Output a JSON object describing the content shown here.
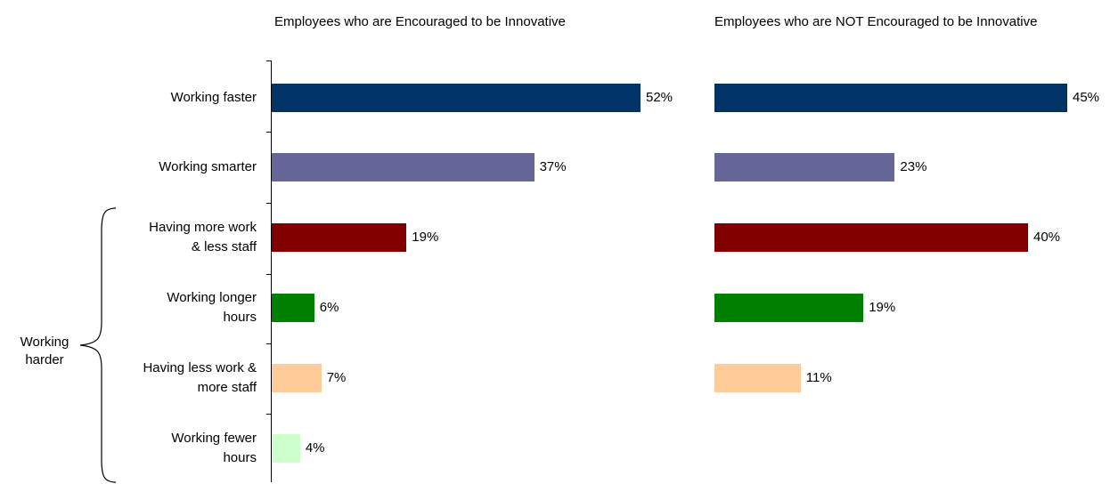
{
  "chart_data": [
    {
      "type": "bar",
      "orientation": "horizontal",
      "title": "Employees who are Encouraged to be Innovative",
      "categories": [
        "Working faster",
        "Working smarter",
        "Having more work & less staff",
        "Working longer hours",
        "Having less work & more staff",
        "Working fewer hours"
      ],
      "values": [
        52,
        37,
        19,
        6,
        7,
        4
      ],
      "value_labels": [
        "52%",
        "37%",
        "19%",
        "6%",
        "7%",
        "4%"
      ],
      "colors": [
        "#003366",
        "#666699",
        "#800000",
        "#008000",
        "#ffcc99",
        "#ccffcc"
      ],
      "xlim": [
        0,
        60
      ]
    },
    {
      "type": "bar",
      "orientation": "horizontal",
      "title": "Employees who are NOT Encouraged to be Innovative",
      "categories": [
        "Working faster",
        "Working smarter",
        "Having more work & less staff",
        "Working longer hours",
        "Having less work & more staff",
        "Working fewer hours"
      ],
      "values": [
        45,
        23,
        40,
        19,
        11,
        null
      ],
      "value_labels": [
        "45%",
        "23%",
        "40%",
        "19%",
        "11%",
        ""
      ],
      "colors": [
        "#003366",
        "#666699",
        "#800000",
        "#008000",
        "#ffcc99",
        "#ccffcc"
      ],
      "xlim": [
        0,
        60
      ]
    }
  ],
  "category_labels": [
    [
      "Working faster"
    ],
    [
      "Working smarter"
    ],
    [
      "Having more work",
      "& less staff"
    ],
    [
      "Working longer",
      "hours"
    ],
    [
      "Having less work &",
      "more staff"
    ],
    [
      "Working fewer",
      "hours"
    ]
  ],
  "group_bracket": {
    "label_lines": [
      "Working",
      "harder"
    ],
    "covers": [
      "Having more work & less staff",
      "Working longer hours",
      "Having less work & more staff",
      "Working fewer hours"
    ]
  }
}
